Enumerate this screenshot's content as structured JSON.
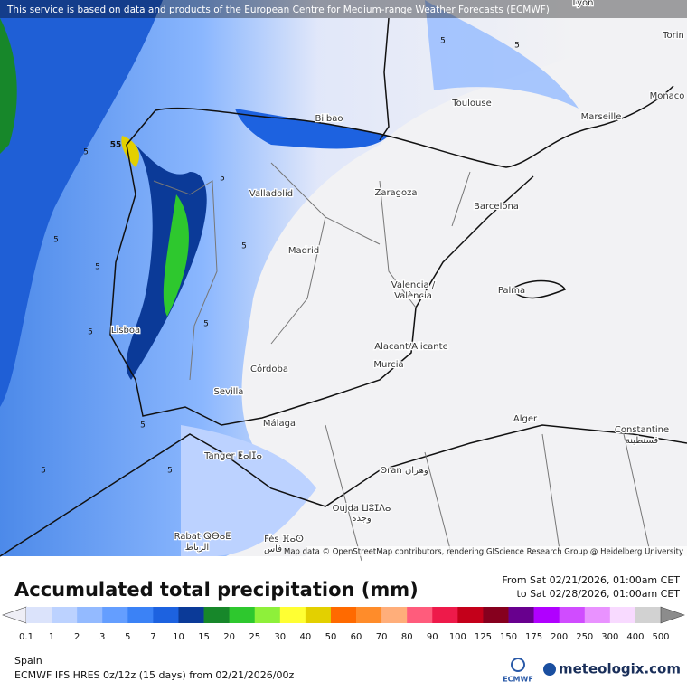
{
  "banner": "This service is based on data and products of the European Centre for Medium-range Weather Forecasts (ECMWF)",
  "cities": [
    "Lyon",
    "Torin",
    "Monaco",
    "Toulouse",
    "Marseille",
    "Bilbao",
    "Valladolid",
    "Zaragoza",
    "Barcelona",
    "Madrid",
    "Valencia /",
    "València",
    "Palma",
    "Lisboa",
    "Alacant/Alicante",
    "Murcia",
    "Córdoba",
    "Sevilla",
    "Málaga",
    "Tanger ⵟⴰⵏⵊⴰ",
    "Alger",
    "Constantine",
    "قسنطينة",
    "Oran وهران",
    "Oujda ⵡⵓⵊⴷⴰ",
    "وجدة",
    "Rabat ⵕⴱⴰⵟ",
    "الرباط",
    "Fès ⴼⴰⵙ",
    "فاس"
  ],
  "contour_labels": [
    "55",
    "5",
    "5",
    "5",
    "5",
    "5",
    "5",
    "5",
    "5",
    "5",
    "5",
    "5",
    "5"
  ],
  "attribution": "Map data © OpenStreetMap contributors, rendering GIScience Research Group @ Heidelberg University",
  "title": "Accumulated total precipitation (mm)",
  "period_from": "From Sat 02/21/2026, 01:00am CET",
  "period_to": "to Sat 02/28/2026, 01:00am CET",
  "legend": {
    "ticks": [
      0.1,
      1,
      2,
      3,
      5,
      7,
      10,
      15,
      20,
      25,
      30,
      40,
      50,
      60,
      70,
      80,
      90,
      100,
      125,
      150,
      175,
      200,
      250,
      300,
      400,
      500
    ],
    "colors": [
      "#dbe3fb",
      "#bcd2ff",
      "#93baff",
      "#649eff",
      "#3b82f6",
      "#1d62e0",
      "#0b3a98",
      "#17872a",
      "#2ec82e",
      "#8ef03a",
      "#ffff33",
      "#e3d000",
      "#ff6a00",
      "#ff8c2a",
      "#ffae7a",
      "#ff5c7c",
      "#ee1a4a",
      "#c4001a",
      "#86001e",
      "#68008e",
      "#b000ff",
      "#d04cff",
      "#e992ff",
      "#f8daff",
      "#d2d2d2"
    ],
    "under_color": "#eeeef6",
    "over_color": "#8c8c8c"
  },
  "region": "Spain",
  "model": "ECMWF IFS HRES 0z/12z (15 days) from 02/21/2026/00z",
  "ecmwf_logo": "ECMWF",
  "brand": "meteologix.com"
}
